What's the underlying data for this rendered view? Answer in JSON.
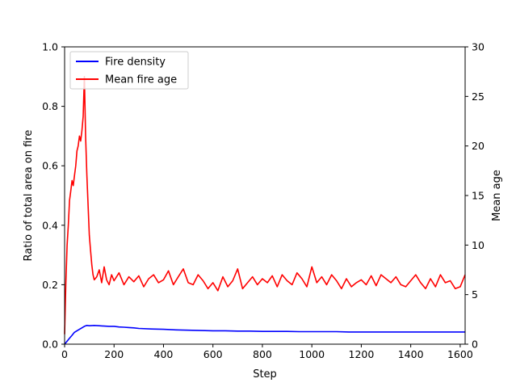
{
  "chart_data": {
    "type": "line",
    "title": "",
    "xlabel": "Step",
    "ylabel_left": "Ratio of total area on fire",
    "ylabel_right": "Mean age",
    "xlim": [
      0,
      1620
    ],
    "ylim_left": [
      0,
      1.0
    ],
    "ylim_right": [
      0,
      30
    ],
    "x_ticks": [
      0,
      200,
      400,
      600,
      800,
      1000,
      1200,
      1400,
      1600
    ],
    "y_ticks_left": [
      0.0,
      0.2,
      0.4,
      0.6,
      0.8,
      1.0
    ],
    "y_ticks_right": [
      0,
      5,
      10,
      15,
      20,
      25,
      30
    ],
    "y_ticks_left_labels": [
      "0.0",
      "0.2",
      "0.4",
      "0.6",
      "0.8",
      "1.0"
    ],
    "y_ticks_right_labels": [
      "0",
      "5",
      "10",
      "15",
      "20",
      "25",
      "30"
    ],
    "grid": false,
    "legend_position": "top-left",
    "series": [
      {
        "name": "Fire density",
        "axis": "left",
        "color": "#0000ff",
        "x": [
          0,
          10,
          20,
          30,
          40,
          50,
          60,
          70,
          80,
          90,
          100,
          120,
          140,
          160,
          180,
          200,
          220,
          240,
          260,
          280,
          300,
          350,
          400,
          450,
          500,
          550,
          600,
          650,
          700,
          750,
          800,
          850,
          900,
          950,
          1000,
          1050,
          1100,
          1150,
          1200,
          1250,
          1300,
          1350,
          1400,
          1450,
          1500,
          1550,
          1600,
          1620
        ],
        "y": [
          0.0,
          0.01,
          0.02,
          0.03,
          0.04,
          0.045,
          0.05,
          0.055,
          0.06,
          0.063,
          0.062,
          0.063,
          0.062,
          0.061,
          0.06,
          0.06,
          0.058,
          0.057,
          0.056,
          0.055,
          0.053,
          0.051,
          0.05,
          0.048,
          0.047,
          0.046,
          0.045,
          0.045,
          0.044,
          0.044,
          0.043,
          0.043,
          0.043,
          0.042,
          0.042,
          0.042,
          0.042,
          0.041,
          0.041,
          0.041,
          0.041,
          0.041,
          0.041,
          0.041,
          0.041,
          0.041,
          0.041,
          0.041
        ]
      },
      {
        "name": "Mean fire age",
        "axis": "right",
        "color": "#ff0000",
        "x": [
          0,
          5,
          10,
          15,
          20,
          25,
          30,
          35,
          40,
          45,
          50,
          55,
          60,
          65,
          70,
          75,
          80,
          85,
          90,
          95,
          100,
          105,
          110,
          115,
          120,
          130,
          140,
          150,
          160,
          170,
          180,
          190,
          200,
          220,
          240,
          260,
          280,
          300,
          320,
          340,
          360,
          380,
          400,
          420,
          440,
          460,
          480,
          500,
          520,
          540,
          560,
          580,
          600,
          620,
          640,
          660,
          680,
          700,
          720,
          740,
          760,
          780,
          800,
          820,
          840,
          860,
          880,
          900,
          920,
          940,
          960,
          980,
          1000,
          1020,
          1040,
          1060,
          1080,
          1100,
          1120,
          1140,
          1160,
          1180,
          1200,
          1220,
          1240,
          1260,
          1280,
          1300,
          1320,
          1340,
          1360,
          1380,
          1400,
          1420,
          1440,
          1460,
          1480,
          1500,
          1520,
          1540,
          1560,
          1580,
          1600,
          1620
        ],
        "y": [
          1.0,
          6.0,
          10.0,
          12.0,
          14.5,
          15.5,
          16.5,
          16.0,
          17.0,
          18.0,
          19.5,
          20.0,
          21.0,
          20.5,
          21.5,
          23.0,
          27.0,
          21.0,
          17.0,
          14.0,
          11.0,
          9.5,
          8.0,
          7.0,
          6.5,
          6.8,
          7.5,
          6.2,
          7.8,
          6.5,
          6.0,
          7.0,
          6.4,
          7.2,
          6.0,
          6.8,
          6.3,
          6.9,
          5.8,
          6.6,
          7.0,
          6.2,
          6.5,
          7.4,
          6.0,
          6.8,
          7.6,
          6.2,
          6.0,
          7.0,
          6.4,
          5.6,
          6.2,
          5.4,
          6.8,
          5.8,
          6.4,
          7.6,
          5.6,
          6.2,
          6.8,
          6.0,
          6.6,
          6.2,
          6.9,
          5.8,
          7.0,
          6.4,
          6.0,
          7.2,
          6.6,
          5.8,
          7.8,
          6.2,
          6.8,
          6.0,
          7.0,
          6.4,
          5.6,
          6.6,
          5.8,
          6.2,
          6.5,
          6.0,
          6.9,
          5.9,
          7.0,
          6.6,
          6.2,
          6.8,
          6.0,
          5.8,
          6.4,
          7.0,
          6.2,
          5.6,
          6.6,
          5.8,
          7.0,
          6.2,
          6.4,
          5.6,
          5.8,
          7.0
        ]
      }
    ]
  }
}
